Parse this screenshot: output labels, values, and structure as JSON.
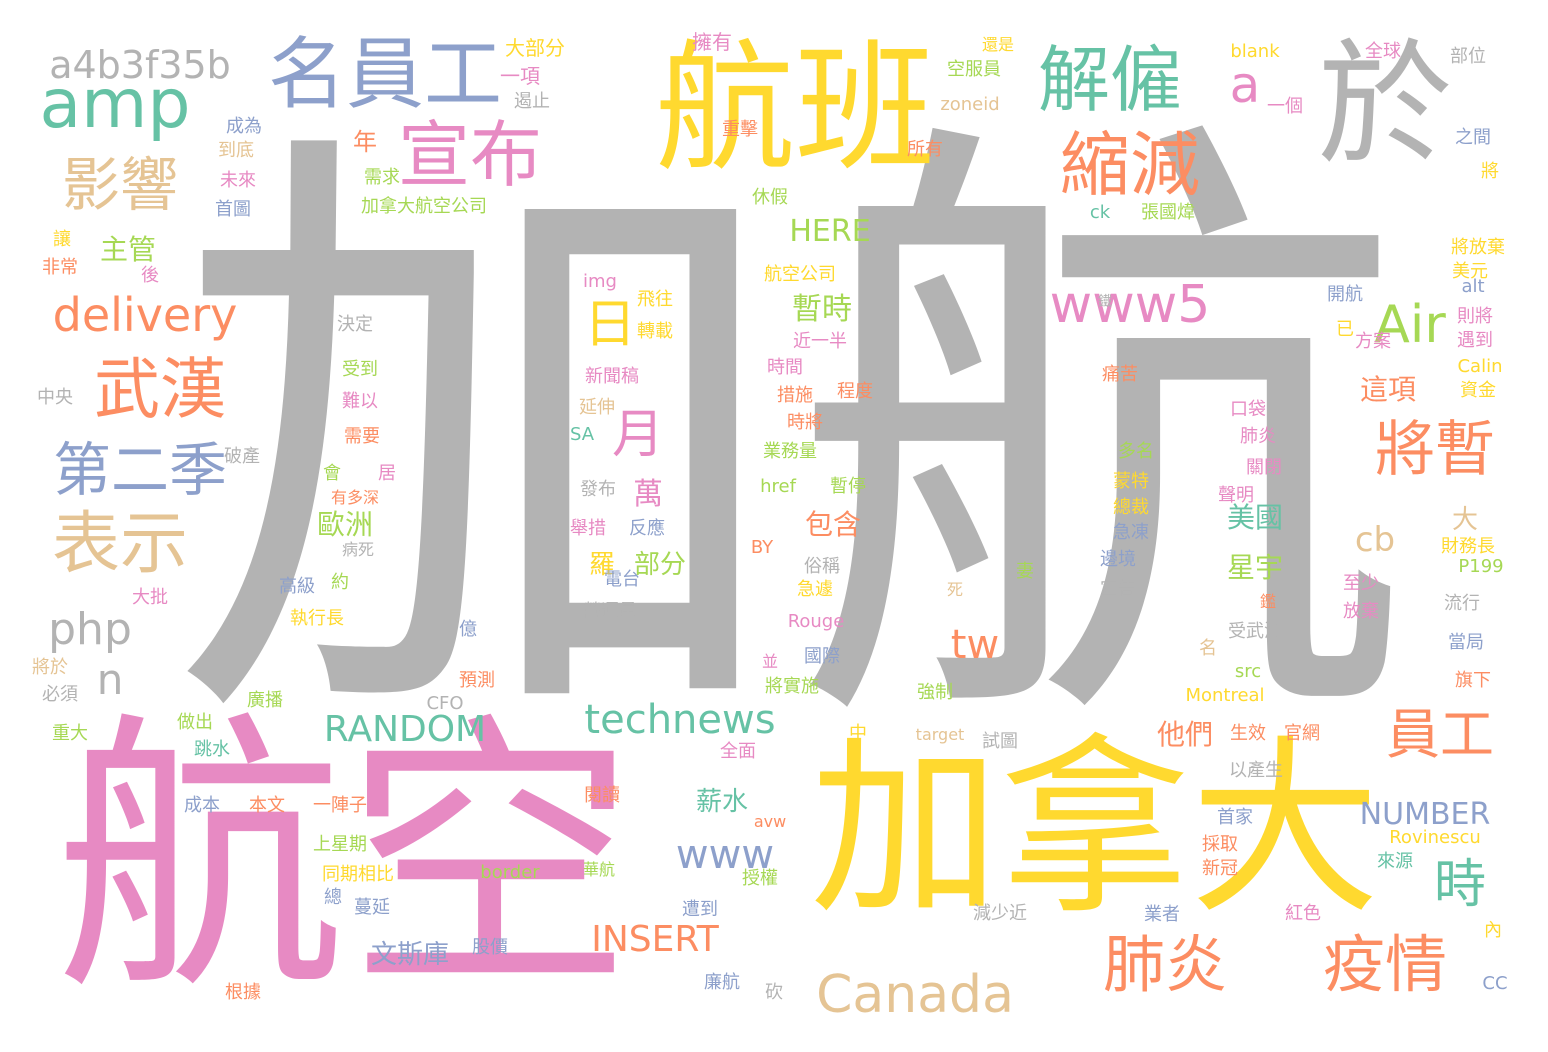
{
  "palette": {
    "gray": "#b3b3b3",
    "pink": "#e78ac3",
    "yellow": "#ffd92f",
    "orange": "#fc8d62",
    "green": "#66c2a5",
    "blue": "#8da0cb",
    "tan": "#e5c494",
    "lime": "#a6d854"
  },
  "words": [
    {
      "text": "加航",
      "color": "gray"
    },
    {
      "text": "航空",
      "color": "pink"
    },
    {
      "text": "加拿大",
      "color": "yellow"
    },
    {
      "text": "航班",
      "color": "yellow"
    },
    {
      "text": "於",
      "color": "gray"
    },
    {
      "text": "名員工",
      "color": "blue"
    },
    {
      "text": "解僱",
      "color": "green"
    },
    {
      "text": "amp",
      "color": "green"
    },
    {
      "text": "a4b3f35b",
      "color": "gray"
    },
    {
      "text": "宣布",
      "color": "pink"
    },
    {
      "text": "縮減",
      "color": "orange"
    },
    {
      "text": "影響",
      "color": "tan"
    },
    {
      "text": "a",
      "color": "pink"
    },
    {
      "text": "www5",
      "color": "pink"
    },
    {
      "text": "Air",
      "color": "lime"
    },
    {
      "text": "delivery",
      "color": "orange"
    },
    {
      "text": "武漢",
      "color": "orange"
    },
    {
      "text": "第二季",
      "color": "blue"
    },
    {
      "text": "表示",
      "color": "tan"
    },
    {
      "text": "php",
      "color": "gray"
    },
    {
      "text": "n",
      "color": "gray"
    },
    {
      "text": "將暫",
      "color": "orange"
    },
    {
      "text": "員工",
      "color": "orange"
    },
    {
      "text": "時",
      "color": "green"
    },
    {
      "text": "肺炎",
      "color": "orange"
    },
    {
      "text": "疫情",
      "color": "orange"
    },
    {
      "text": "Canada",
      "color": "tan"
    },
    {
      "text": "technews",
      "color": "green"
    },
    {
      "text": "RANDOM",
      "color": "green"
    },
    {
      "text": "www",
      "color": "blue"
    },
    {
      "text": "INSERT",
      "color": "orange"
    },
    {
      "text": "NUMBER",
      "color": "blue"
    },
    {
      "text": "tw",
      "color": "orange"
    },
    {
      "text": "日",
      "color": "yellow"
    },
    {
      "text": "月",
      "color": "pink"
    },
    {
      "text": "主管",
      "color": "lime"
    },
    {
      "text": "HERE",
      "color": "lime"
    },
    {
      "text": "暫時",
      "color": "lime"
    },
    {
      "text": "這項",
      "color": "orange"
    },
    {
      "text": "歐洲",
      "color": "lime"
    },
    {
      "text": "美國",
      "color": "green"
    },
    {
      "text": "星宇",
      "color": "lime"
    },
    {
      "text": "cb",
      "color": "tan"
    },
    {
      "text": "包含",
      "color": "orange"
    },
    {
      "text": "他們",
      "color": "orange"
    },
    {
      "text": "薪水",
      "color": "green"
    },
    {
      "text": "文斯庫",
      "color": "blue"
    },
    {
      "text": "大",
      "color": "tan"
    },
    {
      "text": "萬",
      "color": "pink"
    },
    {
      "text": "羅",
      "color": "yellow"
    },
    {
      "text": "部分",
      "color": "lime"
    },
    {
      "text": "年",
      "color": "orange"
    },
    {
      "text": "大部分",
      "color": "yellow"
    },
    {
      "text": "一項",
      "color": "pink"
    },
    {
      "text": "擁有",
      "color": "pink"
    },
    {
      "text": "遏止",
      "color": "gray"
    },
    {
      "text": "空服員",
      "color": "lime"
    },
    {
      "text": "zoneid",
      "color": "tan"
    },
    {
      "text": "blank",
      "color": "yellow"
    },
    {
      "text": "全球",
      "color": "pink"
    },
    {
      "text": "部位",
      "color": "gray"
    },
    {
      "text": "一個",
      "color": "pink"
    },
    {
      "text": "之間",
      "color": "blue"
    },
    {
      "text": "成為",
      "color": "blue"
    },
    {
      "text": "到底",
      "color": "tan"
    },
    {
      "text": "未來",
      "color": "pink"
    },
    {
      "text": "首圖",
      "color": "blue"
    },
    {
      "text": "需求",
      "color": "lime"
    },
    {
      "text": "加拿大航空公司",
      "color": "lime"
    },
    {
      "text": "重擊",
      "color": "orange"
    },
    {
      "text": "休假",
      "color": "lime"
    },
    {
      "text": "所有",
      "color": "orange"
    },
    {
      "text": "ck",
      "color": "green"
    },
    {
      "text": "張國煒",
      "color": "lime"
    },
    {
      "text": "將放棄",
      "color": "yellow"
    },
    {
      "text": "美元",
      "color": "yellow"
    },
    {
      "text": "讓",
      "color": "yellow"
    },
    {
      "text": "非常",
      "color": "orange"
    },
    {
      "text": "後",
      "color": "pink"
    },
    {
      "text": "img",
      "color": "pink"
    },
    {
      "text": "航空公司",
      "color": "yellow"
    },
    {
      "text": "飛往",
      "color": "yellow"
    },
    {
      "text": "轉載",
      "color": "yellow"
    },
    {
      "text": "開航",
      "color": "blue"
    },
    {
      "text": "alt",
      "color": "blue"
    },
    {
      "text": "則將",
      "color": "pink"
    },
    {
      "text": "遇到",
      "color": "pink"
    },
    {
      "text": "決定",
      "color": "gray"
    },
    {
      "text": "近一半",
      "color": "pink"
    },
    {
      "text": "已",
      "color": "yellow"
    },
    {
      "text": "方案",
      "color": "pink"
    },
    {
      "text": "受到",
      "color": "lime"
    },
    {
      "text": "時間",
      "color": "pink"
    },
    {
      "text": "新聞稿",
      "color": "pink"
    },
    {
      "text": "措施",
      "color": "orange"
    },
    {
      "text": "程度",
      "color": "orange"
    },
    {
      "text": "痛苦",
      "color": "orange"
    },
    {
      "text": "Calin",
      "color": "yellow"
    },
    {
      "text": "資金",
      "color": "yellow"
    },
    {
      "text": "中央",
      "color": "gray"
    },
    {
      "text": "難以",
      "color": "pink"
    },
    {
      "text": "延伸",
      "color": "tan"
    },
    {
      "text": "時將",
      "color": "orange"
    },
    {
      "text": "口袋",
      "color": "pink"
    },
    {
      "text": "SA",
      "color": "green"
    },
    {
      "text": "需要",
      "color": "orange"
    },
    {
      "text": "肺炎",
      "color": "pink"
    },
    {
      "text": "業務量",
      "color": "lime"
    },
    {
      "text": "多名",
      "color": "lime"
    },
    {
      "text": "關閉",
      "color": "pink"
    },
    {
      "text": "破產",
      "color": "gray"
    },
    {
      "text": "會",
      "color": "lime"
    },
    {
      "text": "居",
      "color": "pink"
    },
    {
      "text": "有多深",
      "color": "orange"
    },
    {
      "text": "發布",
      "color": "gray"
    },
    {
      "text": "href",
      "color": "lime"
    },
    {
      "text": "暫停",
      "color": "lime"
    },
    {
      "text": "蒙特",
      "color": "yellow"
    },
    {
      "text": "總裁",
      "color": "yellow"
    },
    {
      "text": "聲明",
      "color": "pink"
    },
    {
      "text": "急凍",
      "color": "blue"
    },
    {
      "text": "舉措",
      "color": "pink"
    },
    {
      "text": "反應",
      "color": "blue"
    },
    {
      "text": "病死",
      "color": "gray"
    },
    {
      "text": "BY",
      "color": "orange"
    },
    {
      "text": "財務長",
      "color": "yellow"
    },
    {
      "text": "邊境",
      "color": "blue"
    },
    {
      "text": "約",
      "color": "lime"
    },
    {
      "text": "電台",
      "color": "blue"
    },
    {
      "text": "俗稱",
      "color": "gray"
    },
    {
      "text": "急遽",
      "color": "yellow"
    },
    {
      "text": "宣告",
      "color": "gray"
    },
    {
      "text": "P199",
      "color": "lime"
    },
    {
      "text": "高級",
      "color": "blue"
    },
    {
      "text": "大批",
      "color": "pink"
    },
    {
      "text": "至少",
      "color": "pink"
    },
    {
      "text": "鑑",
      "color": "orange"
    },
    {
      "text": "死",
      "color": "tan"
    },
    {
      "text": "妻",
      "color": "lime"
    },
    {
      "text": "放棄",
      "color": "pink"
    },
    {
      "text": "流行",
      "color": "gray"
    },
    {
      "text": "執行長",
      "color": "yellow"
    },
    {
      "text": "億",
      "color": "blue"
    },
    {
      "text": "營運量",
      "color": "gray"
    },
    {
      "text": "Rouge",
      "color": "pink"
    },
    {
      "text": "國際",
      "color": "blue"
    },
    {
      "text": "受武漢",
      "color": "gray"
    },
    {
      "text": "當局",
      "color": "blue"
    },
    {
      "text": "將於",
      "color": "tan"
    },
    {
      "text": "必須",
      "color": "gray"
    },
    {
      "text": "預測",
      "color": "orange"
    },
    {
      "text": "並",
      "color": "pink"
    },
    {
      "text": "名",
      "color": "tan"
    },
    {
      "text": "src",
      "color": "lime"
    },
    {
      "text": "將實施",
      "color": "lime"
    },
    {
      "text": "廣播",
      "color": "lime"
    },
    {
      "text": "強制",
      "color": "lime"
    },
    {
      "text": "Montreal",
      "color": "yellow"
    },
    {
      "text": "旗下",
      "color": "orange"
    },
    {
      "text": "CFO",
      "color": "gray"
    },
    {
      "text": "重大",
      "color": "lime"
    },
    {
      "text": "做出",
      "color": "lime"
    },
    {
      "text": "跳水",
      "color": "green"
    },
    {
      "text": "中",
      "color": "yellow"
    },
    {
      "text": "target",
      "color": "tan"
    },
    {
      "text": "試圖",
      "color": "gray"
    },
    {
      "text": "生效",
      "color": "orange"
    },
    {
      "text": "官網",
      "color": "orange"
    },
    {
      "text": "全面",
      "color": "pink"
    },
    {
      "text": "以產生",
      "color": "gray"
    },
    {
      "text": "成本",
      "color": "blue"
    },
    {
      "text": "本文",
      "color": "orange"
    },
    {
      "text": "一陣子",
      "color": "orange"
    },
    {
      "text": "閱讀",
      "color": "orange"
    },
    {
      "text": "avw",
      "color": "orange"
    },
    {
      "text": "首家",
      "color": "blue"
    },
    {
      "text": "上星期",
      "color": "lime"
    },
    {
      "text": "採取",
      "color": "orange"
    },
    {
      "text": "Rovinescu",
      "color": "yellow"
    },
    {
      "text": "同期相比",
      "color": "yellow"
    },
    {
      "text": "border",
      "color": "lime"
    },
    {
      "text": "華航",
      "color": "lime"
    },
    {
      "text": "授權",
      "color": "lime"
    },
    {
      "text": "新冠",
      "color": "orange"
    },
    {
      "text": "來源",
      "color": "green"
    },
    {
      "text": "總",
      "color": "blue"
    },
    {
      "text": "蔓延",
      "color": "blue"
    },
    {
      "text": "遭到",
      "color": "blue"
    },
    {
      "text": "減少近",
      "color": "gray"
    },
    {
      "text": "業者",
      "color": "blue"
    },
    {
      "text": "紅色",
      "color": "pink"
    },
    {
      "text": "內",
      "color": "yellow"
    },
    {
      "text": "股價",
      "color": "blue"
    },
    {
      "text": "根據",
      "color": "orange"
    },
    {
      "text": "砍",
      "color": "gray"
    },
    {
      "text": "廉航",
      "color": "blue"
    },
    {
      "text": "CC",
      "color": "blue"
    },
    {
      "text": "還是",
      "color": "yellow"
    },
    {
      "text": "將",
      "color": "yellow"
    },
    {
      "text": "鐵",
      "color": "gray"
    }
  ]
}
